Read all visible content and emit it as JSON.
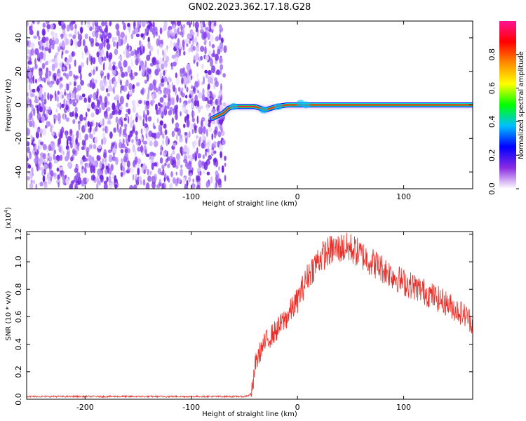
{
  "title": "GN02.2023.362.17.18.G28",
  "chart_data": [
    {
      "type": "heatmap",
      "xlabel": "Height of straight line (km)",
      "ylabel": "Frequency (Hz)",
      "xlim": [
        -255,
        165
      ],
      "ylim": [
        -50,
        50
      ],
      "xticks": [
        -200,
        -100,
        0,
        100
      ],
      "yticks": [
        -40,
        -20,
        0,
        20,
        40
      ],
      "noise_region": {
        "x_start": -255,
        "x_end": -68
      },
      "ridge": {
        "x": [
          -80,
          -70,
          -65,
          -60,
          -50,
          -40,
          -35,
          -30,
          -25,
          -20,
          -10,
          0,
          10,
          50,
          100,
          165
        ],
        "freq": [
          -8,
          -5,
          -2,
          -1,
          -1,
          -1,
          -2,
          -3,
          -2,
          -1,
          0,
          0,
          0,
          0,
          0,
          0
        ]
      },
      "colorbar": {
        "label": "Normalized spectral amplitude",
        "range": [
          0,
          1
        ],
        "ticks": [
          "0.0",
          "0.2",
          "0.4",
          "0.6",
          "0.8"
        ],
        "colors": [
          "#ffffff",
          "#8a2be2",
          "#0000ff",
          "#00bfff",
          "#00ff00",
          "#ffff00",
          "#ff8c00",
          "#ff0000",
          "#ff1493"
        ]
      }
    },
    {
      "type": "line",
      "xlabel": "Height of straight line (km)",
      "ylabel": "SNR (10 * v/v)",
      "yunit": "(x10",
      "yunit_exp": "4",
      "yunit_close": ")",
      "xlim": [
        -255,
        165
      ],
      "ylim": [
        0,
        1.22
      ],
      "xticks": [
        -200,
        -100,
        0,
        100
      ],
      "yticks": [
        "0.0",
        "0.2",
        "0.4",
        "0.6",
        "0.8",
        "1.0",
        "1.2"
      ],
      "series": [
        {
          "color": "#e8302a",
          "x": [
            -255,
            -200,
            -150,
            -100,
            -50,
            -45,
            -42,
            -40,
            -35,
            -30,
            -20,
            -10,
            0,
            10,
            20,
            30,
            40,
            50,
            60,
            70,
            80,
            90,
            100,
            110,
            120,
            130,
            140,
            150,
            160,
            165
          ],
          "values": [
            0.02,
            0.02,
            0.02,
            0.02,
            0.02,
            0.03,
            0.08,
            0.25,
            0.35,
            0.42,
            0.5,
            0.6,
            0.72,
            0.9,
            1.02,
            1.08,
            1.1,
            1.1,
            1.05,
            1.0,
            0.95,
            0.9,
            0.85,
            0.82,
            0.78,
            0.74,
            0.7,
            0.65,
            0.6,
            0.55
          ]
        }
      ]
    }
  ]
}
